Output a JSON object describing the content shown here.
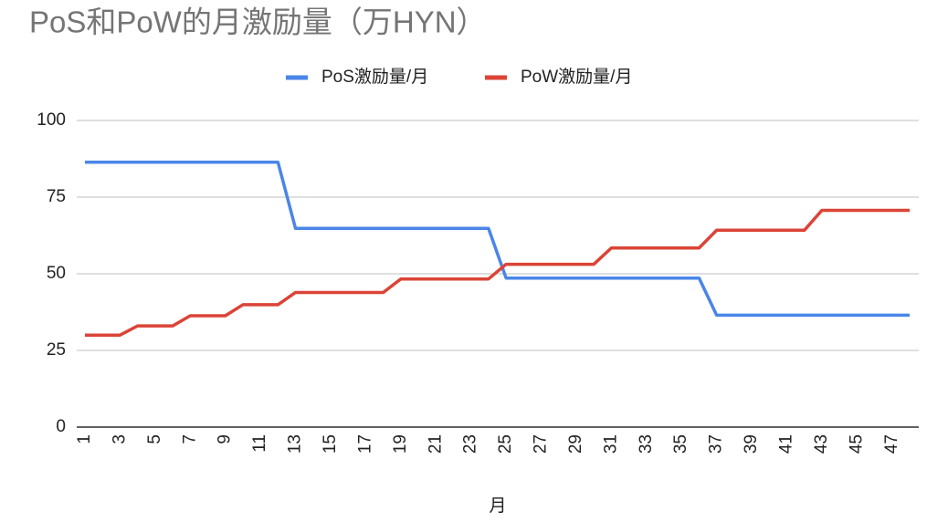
{
  "chart_data": {
    "type": "line",
    "title": "PoS和PoW的月激励量（万HYN）",
    "x_label": "月",
    "x": [
      1,
      2,
      3,
      4,
      5,
      6,
      7,
      8,
      9,
      10,
      11,
      12,
      13,
      14,
      15,
      16,
      17,
      18,
      19,
      20,
      21,
      22,
      23,
      24,
      25,
      26,
      27,
      28,
      29,
      30,
      31,
      32,
      33,
      34,
      35,
      36,
      37,
      38,
      39,
      40,
      41,
      42,
      43,
      44,
      45,
      46,
      47,
      48
    ],
    "xlim": [
      1,
      48
    ],
    "xticks": [
      1,
      3,
      5,
      7,
      9,
      11,
      13,
      15,
      17,
      19,
      21,
      23,
      25,
      27,
      29,
      31,
      33,
      35,
      37,
      39,
      41,
      43,
      45,
      47
    ],
    "ylim": [
      0,
      100
    ],
    "yticks": [
      0,
      25,
      50,
      75,
      100
    ],
    "grid": true,
    "legend": "top",
    "series": [
      {
        "name": "PoS激励量/月",
        "color": "#4a86e8",
        "values": [
          86.4,
          86.4,
          86.4,
          86.4,
          86.4,
          86.4,
          86.4,
          86.4,
          86.4,
          86.4,
          86.4,
          86.4,
          64.8,
          64.8,
          64.8,
          64.8,
          64.8,
          64.8,
          64.8,
          64.8,
          64.8,
          64.8,
          64.8,
          64.8,
          48.6,
          48.6,
          48.6,
          48.6,
          48.6,
          48.6,
          48.6,
          48.6,
          48.6,
          48.6,
          48.6,
          48.6,
          36.5,
          36.5,
          36.5,
          36.5,
          36.5,
          36.5,
          36.5,
          36.5,
          36.5,
          36.5,
          36.5,
          36.5
        ]
      },
      {
        "name": "PoW激励量/月",
        "color": "#db4437",
        "values": [
          30,
          30,
          30,
          33,
          33,
          33,
          36.3,
          36.3,
          36.3,
          39.9,
          39.9,
          39.9,
          43.9,
          43.9,
          43.9,
          43.9,
          43.9,
          43.9,
          48.3,
          48.3,
          48.3,
          48.3,
          48.3,
          48.3,
          53.1,
          53.1,
          53.1,
          53.1,
          53.1,
          53.1,
          58.4,
          58.4,
          58.4,
          58.4,
          58.4,
          58.4,
          64.2,
          64.2,
          64.2,
          64.2,
          64.2,
          64.2,
          70.7,
          70.7,
          70.7,
          70.7,
          70.7,
          70.7
        ]
      }
    ]
  }
}
